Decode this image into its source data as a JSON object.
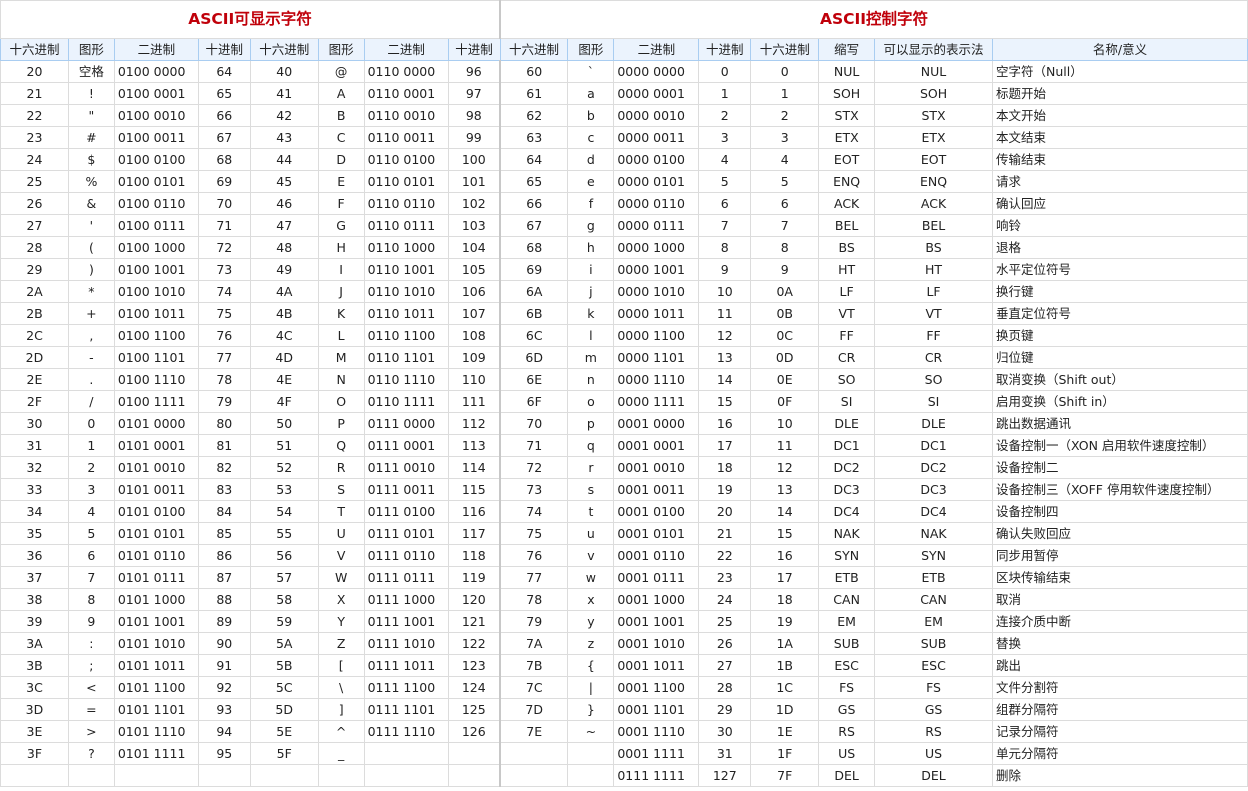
{
  "titles": {
    "printable": "ASCII可显示字符",
    "control": "ASCII控制字符"
  },
  "headers": {
    "hex": "十六进制",
    "glyph": "图形",
    "bin": "二进制",
    "dec": "十进制",
    "abbr": "缩写",
    "printable_repr": "可以显示的表示法",
    "name": "名称/意义"
  },
  "rows": [
    {
      "a": [
        "20",
        "空格",
        "0100 0000",
        "64"
      ],
      "b": [
        "40",
        "@",
        "0110 0000",
        "96"
      ],
      "c": [
        "60",
        "`",
        "0000 0000",
        "0"
      ],
      "d": [
        "0",
        "NUL",
        "NUL",
        "空字符（Null）"
      ]
    },
    {
      "a": [
        "21",
        "!",
        "0100 0001",
        "65"
      ],
      "b": [
        "41",
        "A",
        "0110 0001",
        "97"
      ],
      "c": [
        "61",
        "a",
        "0000 0001",
        "1"
      ],
      "d": [
        "1",
        "SOH",
        "SOH",
        "标题开始"
      ]
    },
    {
      "a": [
        "22",
        "\"",
        "0100 0010",
        "66"
      ],
      "b": [
        "42",
        "B",
        "0110 0010",
        "98"
      ],
      "c": [
        "62",
        "b",
        "0000 0010",
        "2"
      ],
      "d": [
        "2",
        "STX",
        "STX",
        "本文开始"
      ]
    },
    {
      "a": [
        "23",
        "#",
        "0100 0011",
        "67"
      ],
      "b": [
        "43",
        "C",
        "0110 0011",
        "99"
      ],
      "c": [
        "63",
        "c",
        "0000 0011",
        "3"
      ],
      "d": [
        "3",
        "ETX",
        "ETX",
        "本文结束"
      ]
    },
    {
      "a": [
        "24",
        "$",
        "0100 0100",
        "68"
      ],
      "b": [
        "44",
        "D",
        "0110 0100",
        "100"
      ],
      "c": [
        "64",
        "d",
        "0000 0100",
        "4"
      ],
      "d": [
        "4",
        "EOT",
        "EOT",
        "传输结束"
      ]
    },
    {
      "a": [
        "25",
        "%",
        "0100 0101",
        "69"
      ],
      "b": [
        "45",
        "E",
        "0110 0101",
        "101"
      ],
      "c": [
        "65",
        "e",
        "0000 0101",
        "5"
      ],
      "d": [
        "5",
        "ENQ",
        "ENQ",
        "请求"
      ]
    },
    {
      "a": [
        "26",
        "&",
        "0100 0110",
        "70"
      ],
      "b": [
        "46",
        "F",
        "0110 0110",
        "102"
      ],
      "c": [
        "66",
        "f",
        "0000 0110",
        "6"
      ],
      "d": [
        "6",
        "ACK",
        "ACK",
        "确认回应"
      ]
    },
    {
      "a": [
        "27",
        "'",
        "0100 0111",
        "71"
      ],
      "b": [
        "47",
        "G",
        "0110 0111",
        "103"
      ],
      "c": [
        "67",
        "g",
        "0000 0111",
        "7"
      ],
      "d": [
        "7",
        "BEL",
        "BEL",
        "响铃"
      ]
    },
    {
      "a": [
        "28",
        "(",
        "0100 1000",
        "72"
      ],
      "b": [
        "48",
        "H",
        "0110 1000",
        "104"
      ],
      "c": [
        "68",
        "h",
        "0000 1000",
        "8"
      ],
      "d": [
        "8",
        "BS",
        "BS",
        "退格"
      ]
    },
    {
      "a": [
        "29",
        ")",
        "0100 1001",
        "73"
      ],
      "b": [
        "49",
        "I",
        "0110 1001",
        "105"
      ],
      "c": [
        "69",
        "i",
        "0000 1001",
        "9"
      ],
      "d": [
        "9",
        "HT",
        "HT",
        "水平定位符号"
      ]
    },
    {
      "a": [
        "2A",
        "*",
        "0100 1010",
        "74"
      ],
      "b": [
        "4A",
        "J",
        "0110 1010",
        "106"
      ],
      "c": [
        "6A",
        "j",
        "0000 1010",
        "10"
      ],
      "d": [
        "0A",
        "LF",
        "LF",
        "换行键"
      ]
    },
    {
      "a": [
        "2B",
        "+",
        "0100 1011",
        "75"
      ],
      "b": [
        "4B",
        "K",
        "0110 1011",
        "107"
      ],
      "c": [
        "6B",
        "k",
        "0000 1011",
        "11"
      ],
      "d": [
        "0B",
        "VT",
        "VT",
        "垂直定位符号"
      ]
    },
    {
      "a": [
        "2C",
        ",",
        "0100 1100",
        "76"
      ],
      "b": [
        "4C",
        "L",
        "0110 1100",
        "108"
      ],
      "c": [
        "6C",
        "l",
        "0000 1100",
        "12"
      ],
      "d": [
        "0C",
        "FF",
        "FF",
        "换页键"
      ]
    },
    {
      "a": [
        "2D",
        "-",
        "0100 1101",
        "77"
      ],
      "b": [
        "4D",
        "M",
        "0110 1101",
        "109"
      ],
      "c": [
        "6D",
        "m",
        "0000 1101",
        "13"
      ],
      "d": [
        "0D",
        "CR",
        "CR",
        "归位键"
      ]
    },
    {
      "a": [
        "2E",
        ".",
        "0100 1110",
        "78"
      ],
      "b": [
        "4E",
        "N",
        "0110 1110",
        "110"
      ],
      "c": [
        "6E",
        "n",
        "0000 1110",
        "14"
      ],
      "d": [
        "0E",
        "SO",
        "SO",
        "取消变换（Shift out）"
      ]
    },
    {
      "a": [
        "2F",
        "/",
        "0100 1111",
        "79"
      ],
      "b": [
        "4F",
        "O",
        "0110 1111",
        "111"
      ],
      "c": [
        "6F",
        "o",
        "0000 1111",
        "15"
      ],
      "d": [
        "0F",
        "SI",
        "SI",
        "启用变换（Shift in）"
      ]
    },
    {
      "a": [
        "30",
        "0",
        "0101 0000",
        "80"
      ],
      "b": [
        "50",
        "P",
        "0111 0000",
        "112"
      ],
      "c": [
        "70",
        "p",
        "0001 0000",
        "16"
      ],
      "d": [
        "10",
        "DLE",
        "DLE",
        "跳出数据通讯"
      ]
    },
    {
      "a": [
        "31",
        "1",
        "0101 0001",
        "81"
      ],
      "b": [
        "51",
        "Q",
        "0111 0001",
        "113"
      ],
      "c": [
        "71",
        "q",
        "0001 0001",
        "17"
      ],
      "d": [
        "11",
        "DC1",
        "DC1",
        "设备控制一（XON 启用软件速度控制）"
      ]
    },
    {
      "a": [
        "32",
        "2",
        "0101 0010",
        "82"
      ],
      "b": [
        "52",
        "R",
        "0111 0010",
        "114"
      ],
      "c": [
        "72",
        "r",
        "0001 0010",
        "18"
      ],
      "d": [
        "12",
        "DC2",
        "DC2",
        "设备控制二"
      ]
    },
    {
      "a": [
        "33",
        "3",
        "0101 0011",
        "83"
      ],
      "b": [
        "53",
        "S",
        "0111 0011",
        "115"
      ],
      "c": [
        "73",
        "s",
        "0001 0011",
        "19"
      ],
      "d": [
        "13",
        "DC3",
        "DC3",
        "设备控制三（XOFF 停用软件速度控制）"
      ]
    },
    {
      "a": [
        "34",
        "4",
        "0101 0100",
        "84"
      ],
      "b": [
        "54",
        "T",
        "0111 0100",
        "116"
      ],
      "c": [
        "74",
        "t",
        "0001 0100",
        "20"
      ],
      "d": [
        "14",
        "DC4",
        "DC4",
        "设备控制四"
      ]
    },
    {
      "a": [
        "35",
        "5",
        "0101 0101",
        "85"
      ],
      "b": [
        "55",
        "U",
        "0111 0101",
        "117"
      ],
      "c": [
        "75",
        "u",
        "0001 0101",
        "21"
      ],
      "d": [
        "15",
        "NAK",
        "NAK",
        "确认失败回应"
      ]
    },
    {
      "a": [
        "36",
        "6",
        "0101 0110",
        "86"
      ],
      "b": [
        "56",
        "V",
        "0111 0110",
        "118"
      ],
      "c": [
        "76",
        "v",
        "0001 0110",
        "22"
      ],
      "d": [
        "16",
        "SYN",
        "SYN",
        "同步用暂停"
      ]
    },
    {
      "a": [
        "37",
        "7",
        "0101 0111",
        "87"
      ],
      "b": [
        "57",
        "W",
        "0111 0111",
        "119"
      ],
      "c": [
        "77",
        "w",
        "0001 0111",
        "23"
      ],
      "d": [
        "17",
        "ETB",
        "ETB",
        "区块传输结束"
      ]
    },
    {
      "a": [
        "38",
        "8",
        "0101 1000",
        "88"
      ],
      "b": [
        "58",
        "X",
        "0111 1000",
        "120"
      ],
      "c": [
        "78",
        "x",
        "0001 1000",
        "24"
      ],
      "d": [
        "18",
        "CAN",
        "CAN",
        "取消"
      ]
    },
    {
      "a": [
        "39",
        "9",
        "0101 1001",
        "89"
      ],
      "b": [
        "59",
        "Y",
        "0111 1001",
        "121"
      ],
      "c": [
        "79",
        "y",
        "0001 1001",
        "25"
      ],
      "d": [
        "19",
        "EM",
        "EM",
        "连接介质中断"
      ]
    },
    {
      "a": [
        "3A",
        ":",
        "0101 1010",
        "90"
      ],
      "b": [
        "5A",
        "Z",
        "0111 1010",
        "122"
      ],
      "c": [
        "7A",
        "z",
        "0001 1010",
        "26"
      ],
      "d": [
        "1A",
        "SUB",
        "SUB",
        "替换"
      ]
    },
    {
      "a": [
        "3B",
        ";",
        "0101 1011",
        "91"
      ],
      "b": [
        "5B",
        "[",
        "0111 1011",
        "123"
      ],
      "c": [
        "7B",
        "{",
        "0001 1011",
        "27"
      ],
      "d": [
        "1B",
        "ESC",
        "ESC",
        "跳出"
      ]
    },
    {
      "a": [
        "3C",
        "<",
        "0101 1100",
        "92"
      ],
      "b": [
        "5C",
        "\\",
        "0111 1100",
        "124"
      ],
      "c": [
        "7C",
        "|",
        "0001 1100",
        "28"
      ],
      "d": [
        "1C",
        "FS",
        "FS",
        "文件分割符"
      ]
    },
    {
      "a": [
        "3D",
        "=",
        "0101 1101",
        "93"
      ],
      "b": [
        "5D",
        "]",
        "0111 1101",
        "125"
      ],
      "c": [
        "7D",
        "}",
        "0001 1101",
        "29"
      ],
      "d": [
        "1D",
        "GS",
        "GS",
        "组群分隔符"
      ]
    },
    {
      "a": [
        "3E",
        ">",
        "0101 1110",
        "94"
      ],
      "b": [
        "5E",
        "^",
        "0111 1110",
        "126"
      ],
      "c": [
        "7E",
        "~",
        "0001 1110",
        "30"
      ],
      "d": [
        "1E",
        "RS",
        "RS",
        "记录分隔符"
      ]
    },
    {
      "a": [
        "3F",
        "?",
        "0101 1111",
        "95"
      ],
      "b": [
        "5F",
        "_",
        "",
        ""
      ],
      "c": [
        "",
        "",
        "0001 1111",
        "31"
      ],
      "d": [
        "1F",
        "US",
        "US",
        "单元分隔符"
      ]
    },
    {
      "a": [
        "",
        "",
        "",
        ""
      ],
      "b": [
        "",
        "",
        "",
        ""
      ],
      "c": [
        "",
        "",
        "0111 1111",
        "127"
      ],
      "d": [
        "7F",
        "DEL",
        "DEL",
        "删除"
      ]
    }
  ]
}
